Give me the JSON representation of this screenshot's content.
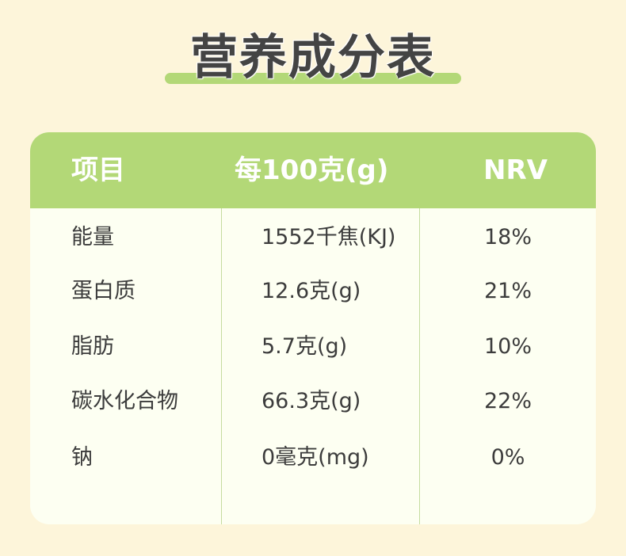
{
  "title": "营养成分表",
  "colors": {
    "background": "#fdf5da",
    "accent": "#b3d877",
    "table_body": "#fdfff2",
    "text": "#3c3c3c"
  },
  "table": {
    "headers": [
      "项目",
      "每100克(g)",
      "NRV"
    ],
    "rows": [
      [
        "能量",
        "1552千焦(KJ)",
        "18%"
      ],
      [
        "蛋白质",
        "12.6克(g)",
        "21%"
      ],
      [
        "脂肪",
        "5.7克(g)",
        "10%"
      ],
      [
        "碳水化合物",
        "66.3克(g)",
        "22%"
      ],
      [
        "钠",
        "0毫克(mg)",
        "0%"
      ]
    ]
  }
}
